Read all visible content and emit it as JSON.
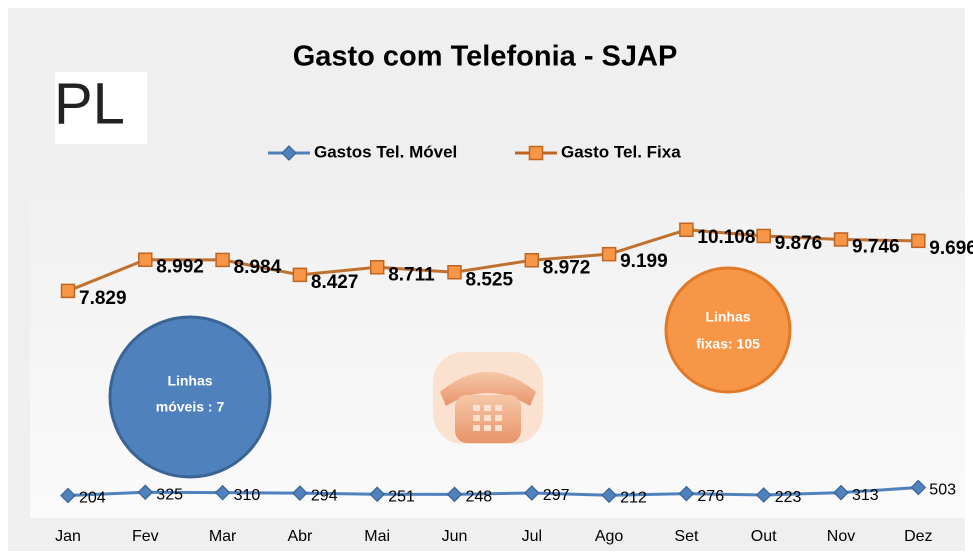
{
  "chart_data": {
    "type": "line",
    "title": "Gasto com Telefonia - SJAP",
    "logo": "PL",
    "categories": [
      "Jan",
      "Fev",
      "Mar",
      "Abr",
      "Mai",
      "Jun",
      "Jul",
      "Ago",
      "Set",
      "Out",
      "Nov",
      "Dez"
    ],
    "series": [
      {
        "name": "Gastos Tel. Móvel",
        "color": "#4f81bd",
        "values": [
          204,
          325,
          310,
          294,
          251,
          248,
          297,
          212,
          276,
          223,
          313,
          503
        ]
      },
      {
        "name": "Gasto Tel. Fixa",
        "color": "#f79646",
        "values": [
          7829,
          8992,
          8984,
          8427,
          8711,
          8525,
          8972,
          9199,
          10108,
          9876,
          9746,
          9696
        ],
        "value_labels": [
          "7.829",
          "8.992",
          "8.984",
          "8.427",
          "8.711",
          "8.525",
          "8.972",
          "9.199",
          "10.108",
          "9.876",
          "9.746",
          "9.696"
        ]
      }
    ],
    "ylim": [
      0,
      12000
    ],
    "annotations": [
      [
        "Linhas",
        "móveis : 7"
      ],
      [
        "Linhas",
        "fixas: 105"
      ]
    ]
  }
}
